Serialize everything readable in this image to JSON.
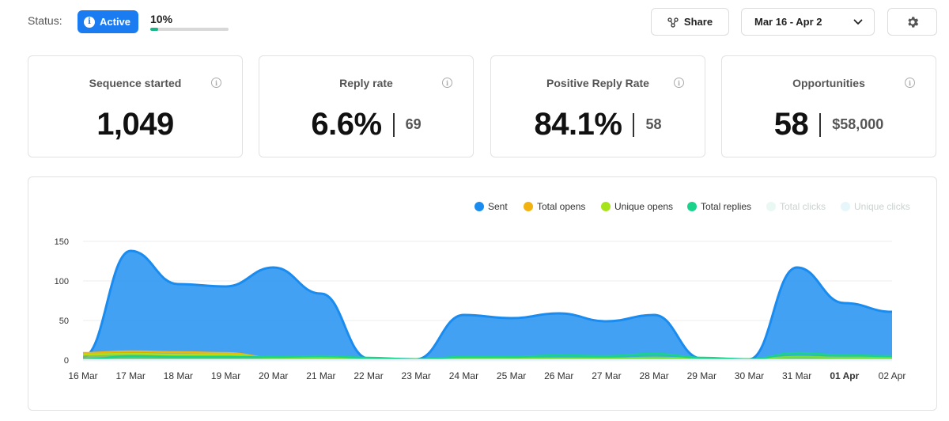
{
  "header": {
    "status_label": "Status:",
    "status_badge": "Active",
    "status_badge_icon": "info-icon",
    "progress_text": "10%",
    "progress_fraction": 0.1,
    "share_label": "Share",
    "share_icon": "share-nodes-icon",
    "date_range": "Mar 16 - Apr 2",
    "date_icon": "chevron-down-icon",
    "settings_icon": "gear-icon"
  },
  "cards": [
    {
      "title": "Sequence started",
      "value": "1,049",
      "sub": ""
    },
    {
      "title": "Reply rate",
      "value": "6.6%",
      "sub": "69"
    },
    {
      "title": "Positive Reply Rate",
      "value": "84.1%",
      "sub": "58"
    },
    {
      "title": "Opportunities",
      "value": "58",
      "sub": "$58,000"
    }
  ],
  "colors": {
    "accent": "#1a7cf0",
    "sent": "#1a8cf0",
    "total_opens": "#f2b211",
    "unique_opens": "#a7e31a",
    "total_replies": "#19d38b",
    "total_clicks": "#e8f7f2",
    "unique_clicks": "#e6f6fb",
    "progress": "#19b58a"
  },
  "legend": [
    {
      "name": "Sent",
      "color": "#1a8cf0",
      "muted": false
    },
    {
      "name": "Total opens",
      "color": "#f2b211",
      "muted": false
    },
    {
      "name": "Unique opens",
      "color": "#a7e31a",
      "muted": false
    },
    {
      "name": "Total replies",
      "color": "#19d38b",
      "muted": false
    },
    {
      "name": "Total clicks",
      "color": "#eaf8f4",
      "muted": true
    },
    {
      "name": "Unique clicks",
      "color": "#e6f6fb",
      "muted": true
    }
  ],
  "chart_data": {
    "type": "area",
    "categories": [
      "16 Mar",
      "17 Mar",
      "18 Mar",
      "19 Mar",
      "20 Mar",
      "21 Mar",
      "22 Mar",
      "23 Mar",
      "24 Mar",
      "25 Mar",
      "26 Mar",
      "27 Mar",
      "28 Mar",
      "29 Mar",
      "30 Mar",
      "31 Mar",
      "01 Apr",
      "02 Apr"
    ],
    "bold_category": "01 Apr",
    "yticks": [
      0,
      50,
      100,
      150
    ],
    "ylim": [
      0,
      150
    ],
    "grid": true,
    "legend_position": "top-right",
    "series": [
      {
        "name": "Sent",
        "values": [
          4,
          138,
          96,
          93,
          117,
          84,
          2,
          1,
          57,
          53,
          59,
          49,
          57,
          2,
          1,
          117,
          72,
          61
        ]
      },
      {
        "name": "Total opens",
        "values": [
          9,
          11,
          10,
          9,
          3,
          3,
          2,
          1,
          3,
          2,
          2,
          2,
          3,
          2,
          1,
          4,
          3,
          3
        ]
      },
      {
        "name": "Unique opens",
        "values": [
          7,
          8,
          7,
          7,
          3,
          3,
          2,
          1,
          3,
          2,
          2,
          2,
          3,
          2,
          1,
          4,
          3,
          3
        ]
      },
      {
        "name": "Total replies",
        "values": [
          1,
          5,
          4,
          4,
          4,
          5,
          3,
          1,
          4,
          4,
          6,
          5,
          8,
          3,
          1,
          9,
          6,
          5
        ]
      },
      {
        "name": "Total clicks",
        "values": [
          0,
          0,
          0,
          0,
          0,
          0,
          0,
          0,
          0,
          0,
          0,
          0,
          0,
          0,
          0,
          0,
          0,
          0
        ]
      },
      {
        "name": "Unique clicks",
        "values": [
          0,
          0,
          0,
          0,
          0,
          0,
          0,
          0,
          0,
          0,
          0,
          0,
          0,
          0,
          0,
          0,
          0,
          0
        ]
      }
    ]
  }
}
